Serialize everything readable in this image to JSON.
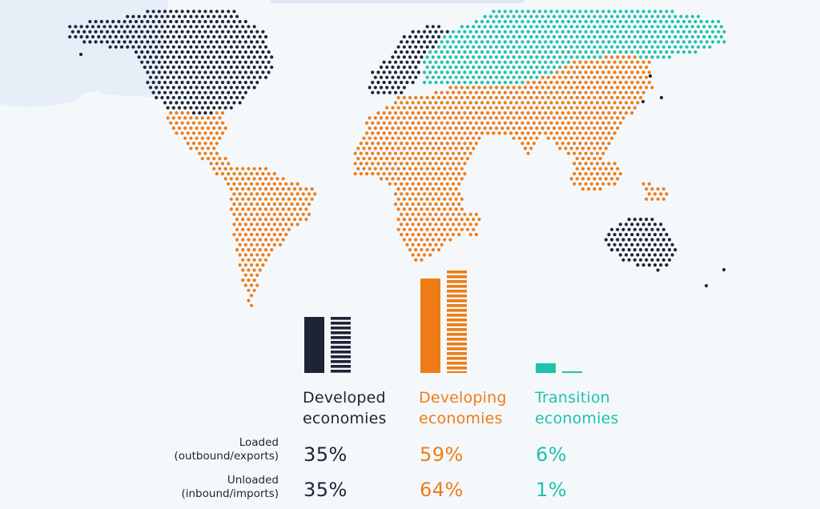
{
  "colors": {
    "developed": "#1e2335",
    "developing": "#ee7c16",
    "transition": "#1dc3ab",
    "background": "#f5f8fb"
  },
  "chart_data": {
    "type": "bar",
    "categories": [
      "Developed\neconomies",
      "Developing\neconomies",
      "Transition\neconomies"
    ],
    "series": [
      {
        "name": "Loaded\n(outbound/exports)",
        "values": [
          35,
          59,
          6
        ],
        "labels": [
          "35%",
          "59%",
          "6%"
        ]
      },
      {
        "name": "Unloaded\n(inbound/imports)",
        "values": [
          35,
          64,
          1
        ],
        "labels": [
          "35%",
          "64%",
          "1%"
        ]
      }
    ],
    "ylim": [
      0,
      64
    ]
  }
}
